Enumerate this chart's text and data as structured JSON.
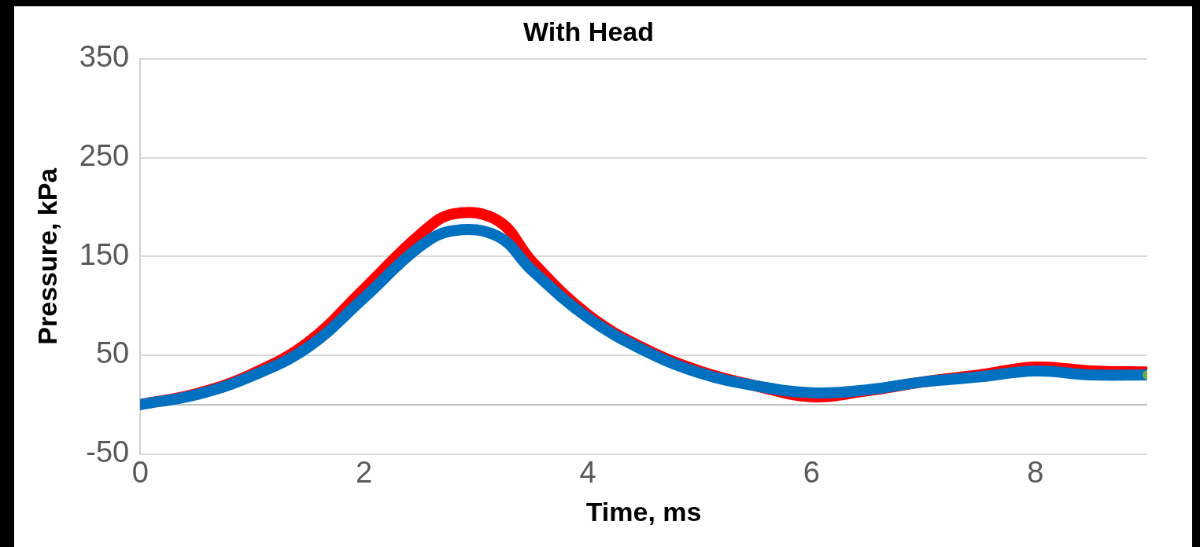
{
  "chart_data": {
    "type": "line",
    "title": "With Head",
    "xlabel": "Time, ms",
    "ylabel": "Pressure, kPa",
    "xlim": [
      0,
      9
    ],
    "xticks": [
      0,
      2,
      4,
      6,
      8
    ],
    "ylim": [
      -50,
      350
    ],
    "yticks": [
      -50,
      {
        "value": 0,
        "label": null
      },
      50,
      150,
      250,
      350
    ],
    "grid": "y",
    "legend": false,
    "line_style": "solid",
    "series": [
      {
        "color": "#ff0000",
        "marker": "none",
        "x": [
          0,
          0.5,
          1,
          1.5,
          2,
          2.5,
          2.8,
          3.2,
          3.5,
          4,
          4.5,
          5,
          5.5,
          6,
          6.5,
          7,
          7.5,
          8,
          8.5,
          9
        ],
        "values": [
          0,
          11,
          31,
          63,
          117,
          172,
          193,
          186,
          145,
          91,
          57,
          34,
          19,
          8,
          14,
          23,
          30,
          38,
          34,
          33
        ]
      },
      {
        "color": "#0070c0",
        "marker": "none",
        "x": [
          0,
          0.5,
          1,
          1.5,
          2,
          2.5,
          2.8,
          3.2,
          3.5,
          4,
          4.5,
          5,
          5.5,
          6,
          6.5,
          7,
          7.5,
          8,
          8.5,
          9
        ],
        "values": [
          0,
          10,
          29,
          58,
          108,
          160,
          176,
          170,
          136,
          88,
          55,
          32,
          19,
          12,
          15,
          23,
          28,
          34,
          30,
          30
        ]
      },
      {
        "type": "scatter",
        "color": "#70ad47",
        "marker": "circle",
        "x": [
          9
        ],
        "values": [
          30
        ]
      }
    ]
  }
}
